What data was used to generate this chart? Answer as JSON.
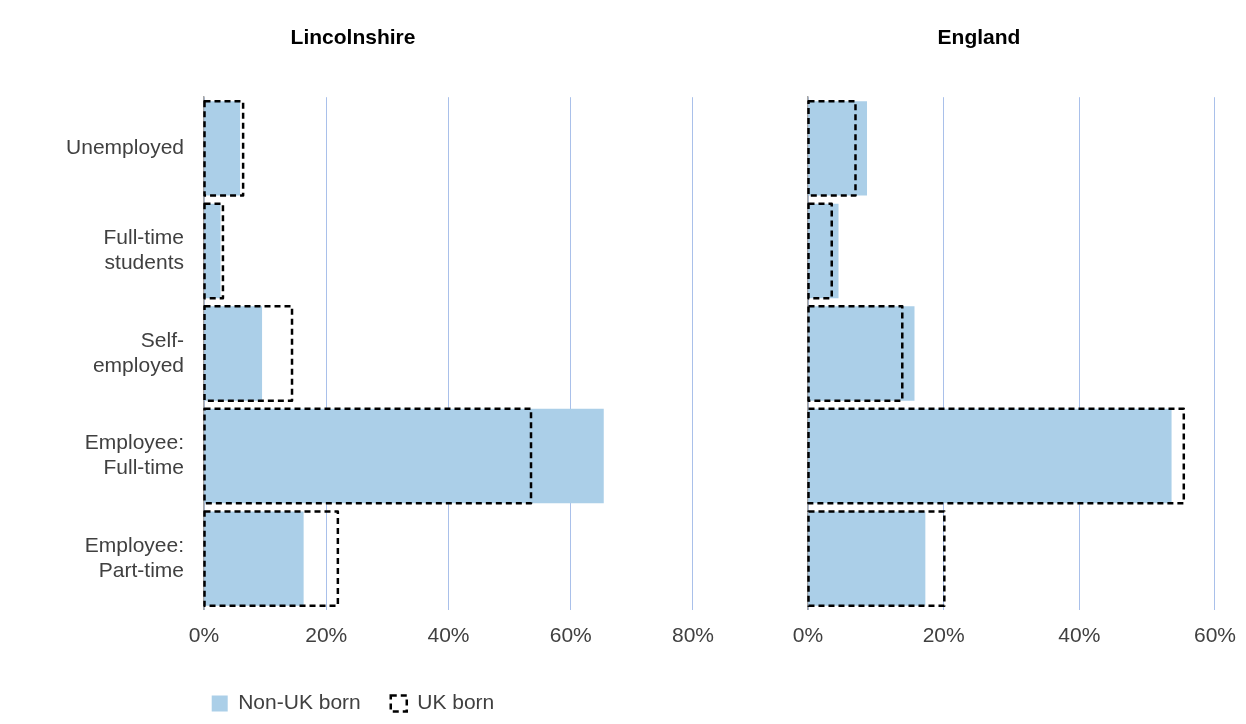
{
  "chart_data": [
    {
      "type": "bar",
      "orientation": "horizontal",
      "title": "Lincolnshire",
      "categories": [
        "Unemployed",
        "Full-time students",
        "Self-employed",
        "Employee: Full-time",
        "Employee: Part-time"
      ],
      "series": [
        {
          "name": "Non-UK born",
          "color": "#abcfe8",
          "values": [
            5.9,
            2.7,
            9.5,
            65.4,
            16.3
          ]
        },
        {
          "name": "UK born",
          "color": "#000000",
          "line_style": "dashed",
          "values": [
            6.4,
            3.1,
            14.4,
            53.5,
            21.9
          ]
        }
      ],
      "xlim": [
        0,
        80
      ],
      "xticks": [
        {
          "value": 0,
          "label": "0%"
        },
        {
          "value": 20,
          "label": "20%"
        },
        {
          "value": 40,
          "label": "40%"
        },
        {
          "value": 60,
          "label": "60%"
        },
        {
          "value": 80,
          "label": "80%"
        }
      ],
      "grid": "x",
      "legend": "bottom"
    },
    {
      "type": "bar",
      "orientation": "horizontal",
      "title": "England",
      "categories": [
        null,
        null,
        null,
        null,
        null
      ],
      "series": [
        {
          "color": "#abcfe8",
          "values": [
            8.7,
            4.5,
            15.7,
            53.6,
            17.3
          ]
        },
        {
          "color": "#000000",
          "line_style": "dashed",
          "values": [
            7.0,
            3.5,
            13.9,
            55.4,
            20.1
          ]
        }
      ],
      "xlim": [
        0,
        60
      ],
      "xticks": [
        {
          "value": 0,
          "label": "0%"
        },
        {
          "value": 20,
          "label": "20%"
        },
        {
          "value": 40,
          "label": "40%"
        },
        {
          "value": 60,
          "label": "60%"
        }
      ],
      "grid": "x",
      "tick_labels": "x"
    }
  ]
}
